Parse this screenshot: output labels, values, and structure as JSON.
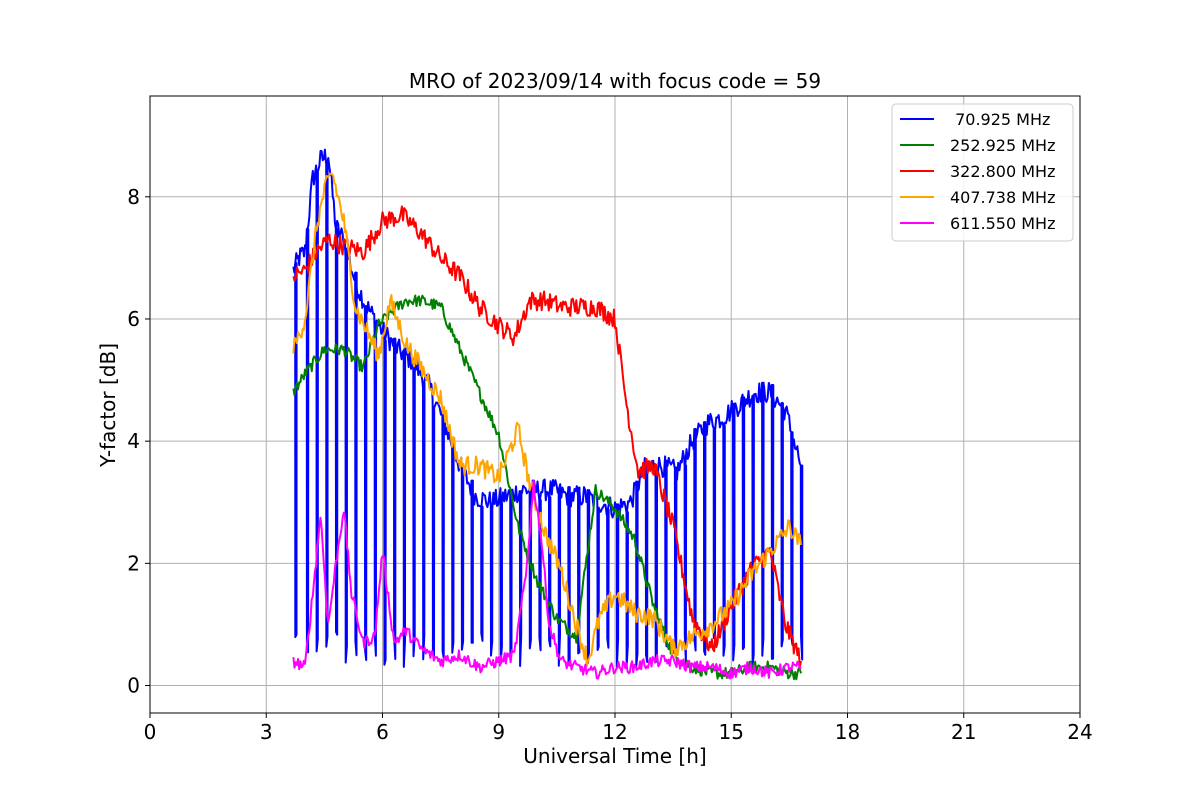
{
  "chart_data": {
    "type": "line",
    "title": "MRO of 2023/09/14 with focus code = 59",
    "xlabel": "Universal Time [h]",
    "ylabel": "Y-factor [dB]",
    "xlim": [
      0,
      24
    ],
    "ylim": [
      -0.45,
      9.65
    ],
    "xticks": [
      0,
      3,
      6,
      9,
      12,
      15,
      18,
      21,
      24
    ],
    "yticks": [
      0,
      2,
      4,
      6,
      8
    ],
    "xtick_labels": [
      "0",
      "3",
      "6",
      "9",
      "12",
      "15",
      "18",
      "21",
      "24"
    ],
    "ytick_labels": [
      "0",
      "2",
      "4",
      "6",
      "8"
    ],
    "grid": true,
    "legend_position": "top-right",
    "series": [
      {
        "name": " 70.925 MHz",
        "color": "#0000ff",
        "x": [
          3.7,
          3.85,
          4.0,
          4.2,
          4.4,
          4.6,
          4.8,
          5.0,
          5.3,
          5.6,
          6.0,
          6.4,
          6.8,
          7.2,
          7.6,
          8.0,
          8.4,
          8.8,
          9.2,
          9.6,
          10.0,
          10.4,
          10.8,
          11.2,
          11.6,
          12.0,
          12.4,
          12.8,
          13.2,
          13.6,
          14.0,
          14.4,
          14.8,
          15.2,
          15.6,
          16.0,
          16.4,
          16.8
        ],
        "y": [
          6.8,
          7.0,
          7.1,
          8.3,
          8.6,
          8.7,
          7.5,
          7.3,
          6.6,
          6.2,
          5.8,
          5.5,
          5.3,
          4.9,
          4.3,
          3.6,
          3.1,
          3.0,
          3.1,
          3.2,
          3.2,
          3.2,
          3.1,
          3.1,
          3.0,
          2.9,
          3.0,
          3.6,
          3.6,
          3.5,
          4.0,
          4.3,
          4.4,
          4.6,
          4.8,
          4.8,
          4.5,
          3.6
        ],
        "dips": [
          3.75,
          4.05,
          4.3,
          4.55,
          4.8,
          5.05,
          5.3,
          5.55,
          5.8,
          6.05,
          6.3,
          6.55,
          6.8,
          7.05,
          7.3,
          7.55,
          7.8,
          8.05,
          8.3,
          8.55,
          8.8,
          9.05,
          9.3,
          9.55,
          9.8,
          10.05,
          10.3,
          10.55,
          10.8,
          11.05,
          11.3,
          11.55,
          11.8,
          12.05,
          12.3,
          12.55,
          12.8,
          13.05,
          13.3,
          13.55,
          13.8,
          14.05,
          14.3,
          14.55,
          14.8,
          15.05,
          15.3,
          15.55,
          15.8,
          16.05,
          16.3,
          16.55,
          16.8
        ]
      },
      {
        "name": "252.925 MHz",
        "color": "#008000",
        "x": [
          3.7,
          4.0,
          4.5,
          5.0,
          5.5,
          5.9,
          6.2,
          6.6,
          7.0,
          7.5,
          8.0,
          8.5,
          9.0,
          9.5,
          10.0,
          10.5,
          11.0,
          11.5,
          12.0,
          12.5,
          13.0,
          13.5,
          14.0,
          14.5,
          15.0,
          15.5,
          16.0,
          16.5,
          16.8
        ],
        "y": [
          4.8,
          5.1,
          5.5,
          5.5,
          5.2,
          5.9,
          6.1,
          6.3,
          6.3,
          6.2,
          5.5,
          4.8,
          4.1,
          2.6,
          1.7,
          1.1,
          0.8,
          3.2,
          2.9,
          2.4,
          1.3,
          0.5,
          0.3,
          0.2,
          0.2,
          0.3,
          0.3,
          0.2,
          0.2
        ]
      },
      {
        "name": "322.800 MHz",
        "color": "#ff0000",
        "x": [
          3.7,
          4.0,
          4.3,
          4.6,
          5.0,
          5.5,
          6.0,
          6.5,
          7.0,
          7.5,
          8.0,
          8.5,
          9.0,
          9.4,
          9.8,
          10.2,
          10.6,
          11.0,
          11.5,
          12.0,
          12.3,
          12.6,
          13.0,
          13.5,
          14.0,
          14.5,
          15.0,
          15.5,
          16.0,
          16.4,
          16.8
        ],
        "y": [
          6.7,
          6.8,
          7.1,
          7.3,
          7.2,
          7.1,
          7.6,
          7.7,
          7.4,
          7.0,
          6.7,
          6.2,
          5.9,
          5.7,
          6.3,
          6.3,
          6.2,
          6.2,
          6.2,
          6.0,
          4.6,
          3.5,
          3.6,
          2.6,
          1.1,
          0.6,
          1.3,
          1.9,
          2.2,
          1.0,
          0.4
        ]
      },
      {
        "name": "407.738 MHz",
        "color": "#ffa500",
        "x": [
          3.7,
          4.0,
          4.3,
          4.5,
          4.7,
          5.0,
          5.3,
          5.6,
          5.9,
          6.2,
          6.6,
          7.0,
          7.5,
          8.0,
          8.5,
          9.0,
          9.5,
          9.8,
          10.2,
          10.6,
          11.0,
          11.3,
          11.6,
          12.0,
          12.5,
          13.0,
          13.5,
          14.0,
          14.5,
          15.0,
          15.5,
          16.0,
          16.5,
          16.8
        ],
        "y": [
          5.5,
          6.0,
          7.5,
          8.1,
          8.4,
          7.6,
          6.2,
          5.8,
          5.4,
          6.3,
          5.6,
          5.2,
          4.7,
          3.6,
          3.6,
          3.4,
          4.2,
          3.3,
          2.5,
          1.9,
          1.0,
          0.4,
          1.1,
          1.5,
          1.2,
          1.1,
          0.6,
          0.8,
          1.0,
          1.3,
          1.8,
          2.2,
          2.6,
          2.3
        ]
      },
      {
        "name": "611.550 MHz",
        "color": "#ff00ff",
        "x": [
          3.7,
          4.0,
          4.2,
          4.4,
          4.6,
          4.8,
          5.0,
          5.2,
          5.5,
          5.8,
          6.0,
          6.3,
          6.6,
          7.0,
          7.5,
          8.0,
          8.5,
          9.0,
          9.4,
          9.7,
          9.9,
          10.1,
          10.3,
          10.6,
          11.0,
          11.5,
          12.0,
          12.5,
          13.0,
          13.5,
          14.0,
          14.5,
          15.0,
          15.5,
          16.0,
          16.5,
          16.8
        ],
        "y": [
          0.4,
          0.3,
          1.5,
          2.8,
          1.0,
          2.0,
          2.9,
          1.5,
          0.7,
          0.8,
          2.2,
          0.7,
          0.9,
          0.6,
          0.4,
          0.5,
          0.3,
          0.4,
          0.5,
          1.8,
          3.3,
          2.4,
          1.0,
          0.4,
          0.3,
          0.2,
          0.3,
          0.3,
          0.4,
          0.4,
          0.3,
          0.3,
          0.2,
          0.3,
          0.2,
          0.3,
          0.3
        ]
      }
    ]
  }
}
